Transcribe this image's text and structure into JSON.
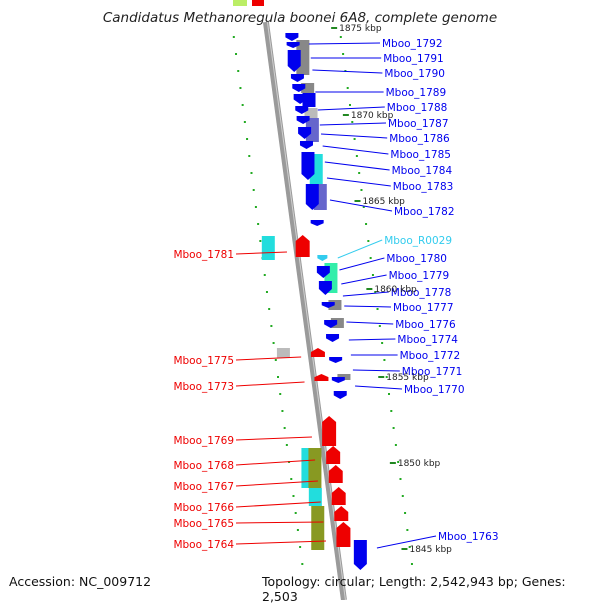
{
  "title": "Candidatus Methanoregula boonei 6A8, complete genome",
  "footer": {
    "accession": "Accession: NC_009712",
    "topology": "Topology: circular; Length: 2,542,943 bp; Genes: 2,503"
  },
  "colors": {
    "backbone": "#888888",
    "forward_gene": "#0000ee",
    "reverse_gene": "#ee0000",
    "rna_gene": "#33ccee",
    "tick": "#22aa22",
    "cog_cyan": "#22dddd",
    "cog_gray": "#888888",
    "cog_slate": "#6666cc",
    "cog_olive": "#889922",
    "cog_aqua": "#33eeaa",
    "cog_lightgray": "#bbbbbb"
  },
  "scale_labels": [
    "1875 kbp",
    "1870 kbp",
    "1865 kbp",
    "1860 kbp",
    "1855 kbp",
    "1850 kbp",
    "1845 kbp"
  ],
  "genes_right": [
    "Mboo_1792",
    "Mboo_1791",
    "Mboo_1790",
    "Mboo_1789",
    "Mboo_1788",
    "Mboo_1787",
    "Mboo_1786",
    "Mboo_1785",
    "Mboo_1784",
    "Mboo_1783",
    "Mboo_1782",
    "Mboo_R0029",
    "Mboo_1780",
    "Mboo_1779",
    "Mboo_1778",
    "Mboo_1777",
    "Mboo_1776",
    "Mboo_1774",
    "Mboo_1772",
    "Mboo_1771",
    "Mboo_1770",
    "Mboo_1763"
  ],
  "genes_left": [
    "Mboo_1781",
    "Mboo_1775",
    "Mboo_1773",
    "Mboo_1769",
    "Mboo_1768",
    "Mboo_1767",
    "Mboo_1766",
    "Mboo_1765",
    "Mboo_1764"
  ]
}
